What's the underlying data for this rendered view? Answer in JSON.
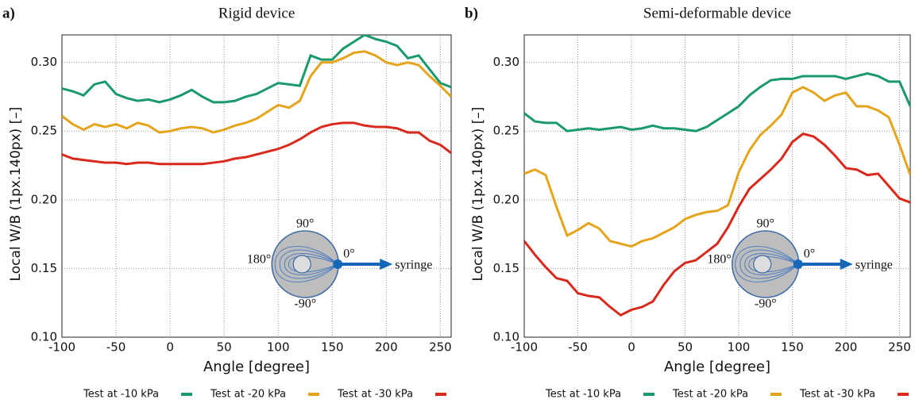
{
  "chart_data": [
    {
      "type": "line",
      "panel_label": "a)",
      "title": "Rigid device",
      "xlabel": "Angle [degree]",
      "ylabel": "Local W/B (1px.140px) [–]",
      "x": [
        -100,
        -90,
        -80,
        -70,
        -60,
        -50,
        -40,
        -30,
        -20,
        -10,
        0,
        10,
        20,
        30,
        40,
        50,
        60,
        70,
        80,
        90,
        100,
        110,
        120,
        130,
        140,
        150,
        160,
        170,
        180,
        190,
        200,
        210,
        220,
        230,
        240,
        250,
        260
      ],
      "series": [
        {
          "name": "Test at -10 kPa",
          "color": "#1a9a6c",
          "values": [
            0.281,
            0.279,
            0.276,
            0.284,
            0.286,
            0.277,
            0.274,
            0.272,
            0.273,
            0.271,
            0.273,
            0.276,
            0.28,
            0.275,
            0.271,
            0.271,
            0.272,
            0.275,
            0.277,
            0.281,
            0.285,
            0.284,
            0.283,
            0.305,
            0.302,
            0.302,
            0.31,
            0.315,
            0.32,
            0.317,
            0.315,
            0.312,
            0.303,
            0.305,
            0.295,
            0.285,
            0.282
          ]
        },
        {
          "name": "Test at -20 kPa",
          "color": "#e4a51d",
          "values": [
            0.261,
            0.255,
            0.251,
            0.255,
            0.253,
            0.255,
            0.252,
            0.256,
            0.254,
            0.249,
            0.25,
            0.252,
            0.253,
            0.252,
            0.249,
            0.251,
            0.254,
            0.256,
            0.259,
            0.264,
            0.269,
            0.267,
            0.272,
            0.29,
            0.3,
            0.3,
            0.303,
            0.307,
            0.308,
            0.305,
            0.3,
            0.298,
            0.3,
            0.298,
            0.29,
            0.283,
            0.275
          ]
        },
        {
          "name": "Test at -30 kPa",
          "color": "#d9291c",
          "values": [
            0.233,
            0.23,
            0.229,
            0.228,
            0.227,
            0.227,
            0.226,
            0.227,
            0.227,
            0.226,
            0.226,
            0.226,
            0.226,
            0.226,
            0.227,
            0.228,
            0.23,
            0.231,
            0.233,
            0.235,
            0.237,
            0.24,
            0.244,
            0.249,
            0.253,
            0.255,
            0.256,
            0.256,
            0.254,
            0.253,
            0.253,
            0.252,
            0.249,
            0.249,
            0.243,
            0.24,
            0.234
          ]
        }
      ],
      "xlim": [
        -100,
        260
      ],
      "ylim": [
        0.1,
        0.32
      ],
      "xticks": [
        -100,
        -50,
        0,
        50,
        100,
        150,
        200,
        250
      ],
      "yticks": [
        {
          "value": 0.1,
          "label": "0.10"
        },
        0.15,
        {
          "value": 0.2,
          "label": "0.20"
        },
        0.25,
        {
          "value": 0.3,
          "label": "0.30"
        }
      ],
      "grid": true,
      "legend": "bottom",
      "inset_labels": {
        "top": "90°",
        "bottom": "-90°",
        "left": "180°",
        "right": "0°",
        "arrow": "syringe"
      }
    },
    {
      "type": "line",
      "panel_label": "b)",
      "title": "Semi-deformable device",
      "xlabel": "Angle [degree]",
      "ylabel": "Local W/B (1px.140px) [–]",
      "x": [
        -100,
        -90,
        -80,
        -70,
        -60,
        -50,
        -40,
        -30,
        -20,
        -10,
        0,
        10,
        20,
        30,
        40,
        50,
        60,
        70,
        80,
        90,
        100,
        110,
        120,
        130,
        140,
        150,
        160,
        170,
        180,
        190,
        200,
        210,
        220,
        230,
        240,
        250,
        260
      ],
      "series": [
        {
          "name": "Test at -10 kPa",
          "color": "#1a9a6c",
          "values": [
            0.263,
            0.257,
            0.256,
            0.256,
            0.25,
            0.251,
            0.252,
            0.251,
            0.252,
            0.253,
            0.251,
            0.252,
            0.254,
            0.252,
            0.252,
            0.251,
            0.25,
            0.253,
            0.258,
            0.263,
            0.268,
            0.276,
            0.282,
            0.287,
            0.288,
            0.288,
            0.29,
            0.29,
            0.29,
            0.29,
            0.288,
            0.29,
            0.292,
            0.29,
            0.286,
            0.286,
            0.268
          ]
        },
        {
          "name": "Test at -20 kPa",
          "color": "#e4a51d",
          "values": [
            0.219,
            0.222,
            0.218,
            0.195,
            0.174,
            0.178,
            0.183,
            0.179,
            0.17,
            0.168,
            0.166,
            0.17,
            0.172,
            0.176,
            0.18,
            0.186,
            0.189,
            0.191,
            0.192,
            0.196,
            0.22,
            0.236,
            0.247,
            0.254,
            0.262,
            0.278,
            0.282,
            0.278,
            0.272,
            0.276,
            0.278,
            0.268,
            0.268,
            0.265,
            0.26,
            0.24,
            0.218
          ]
        },
        {
          "name": "Test at -30 kPa",
          "color": "#d9291c",
          "values": [
            0.17,
            0.16,
            0.151,
            0.143,
            0.141,
            0.132,
            0.13,
            0.129,
            0.122,
            0.116,
            0.12,
            0.122,
            0.126,
            0.138,
            0.148,
            0.154,
            0.156,
            0.162,
            0.168,
            0.18,
            0.195,
            0.208,
            0.215,
            0.222,
            0.23,
            0.242,
            0.248,
            0.246,
            0.24,
            0.232,
            0.223,
            0.222,
            0.218,
            0.219,
            0.21,
            0.201,
            0.198
          ]
        }
      ],
      "xlim": [
        -100,
        260
      ],
      "ylim": [
        0.1,
        0.32
      ],
      "xticks": [
        -100,
        -50,
        0,
        50,
        100,
        150,
        200,
        250
      ],
      "yticks": [
        {
          "value": 0.1,
          "label": "0.10"
        },
        0.15,
        {
          "value": 0.2,
          "label": "0.20"
        },
        0.25,
        {
          "value": 0.3,
          "label": "0.30"
        }
      ],
      "grid": true,
      "legend": "bottom",
      "inset_labels": {
        "top": "90°",
        "bottom": "-90°",
        "left": "180°",
        "right": "0°",
        "arrow": "syringe"
      }
    }
  ]
}
